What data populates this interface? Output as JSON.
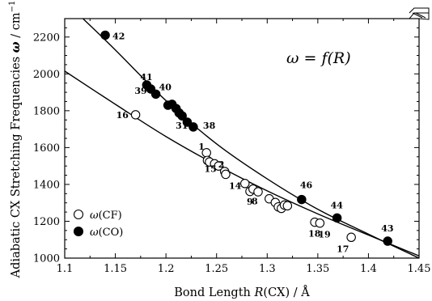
{
  "chart_data": {
    "type": "scatter",
    "xlabel_parts": [
      "Bond Length ",
      "R",
      "(CX) / Å"
    ],
    "ylabel_parts": [
      "Adiabatic CX Stretching Frequencies ",
      "ω",
      " / cm",
      "−1"
    ],
    "equation": "ω = f(R)",
    "xlim": [
      1.1,
      1.45
    ],
    "ylim": [
      1000,
      2300
    ],
    "x_ticks": [
      "1.1",
      "1.15",
      "1.2",
      "1.25",
      "1.3",
      "1.35",
      "1.4",
      "1.45"
    ],
    "y_ticks": [
      "1000",
      "1200",
      "1400",
      "1600",
      "1800",
      "2000",
      "2200"
    ],
    "legend": [
      {
        "symbol": "open-circle",
        "name_parts": [
          "ω",
          "(CF)"
        ]
      },
      {
        "symbol": "filled-circle",
        "name_parts": [
          "ω",
          "(CO)"
        ]
      }
    ],
    "series": [
      {
        "name": "ω(CF)",
        "marker": "open",
        "points": [
          {
            "x": 1.17,
            "y": 1778,
            "label": "16"
          },
          {
            "x": 1.24,
            "y": 1572,
            "label": "1"
          },
          {
            "x": 1.241,
            "y": 1530,
            "label": "15"
          },
          {
            "x": 1.243,
            "y": 1522
          },
          {
            "x": 1.248,
            "y": 1512
          },
          {
            "x": 1.252,
            "y": 1500
          },
          {
            "x": 1.258,
            "y": 1470,
            "label": "2"
          },
          {
            "x": 1.259,
            "y": 1455,
            "label": "14"
          },
          {
            "x": 1.278,
            "y": 1405
          },
          {
            "x": 1.283,
            "y": 1362,
            "label": "8"
          },
          {
            "x": 1.286,
            "y": 1375
          },
          {
            "x": 1.291,
            "y": 1360,
            "label": "9"
          },
          {
            "x": 1.302,
            "y": 1322
          },
          {
            "x": 1.308,
            "y": 1302
          },
          {
            "x": 1.311,
            "y": 1278
          },
          {
            "x": 1.314,
            "y": 1270
          },
          {
            "x": 1.317,
            "y": 1288
          },
          {
            "x": 1.32,
            "y": 1284
          },
          {
            "x": 1.347,
            "y": 1195,
            "label": "18"
          },
          {
            "x": 1.352,
            "y": 1190,
            "label": "19"
          },
          {
            "x": 1.383,
            "y": 1113,
            "label": "17"
          }
        ]
      },
      {
        "name": "ω(CO)",
        "marker": "filled",
        "points": [
          {
            "x": 1.14,
            "y": 2210,
            "label": "42"
          },
          {
            "x": 1.181,
            "y": 1940,
            "label": "41"
          },
          {
            "x": 1.185,
            "y": 1918,
            "label": "39"
          },
          {
            "x": 1.19,
            "y": 1890,
            "label": "40"
          },
          {
            "x": 1.202,
            "y": 1830
          },
          {
            "x": 1.206,
            "y": 1835
          },
          {
            "x": 1.21,
            "y": 1812
          },
          {
            "x": 1.213,
            "y": 1788
          },
          {
            "x": 1.216,
            "y": 1772,
            "label": "31"
          },
          {
            "x": 1.221,
            "y": 1738
          },
          {
            "x": 1.227,
            "y": 1712,
            "label": "38"
          },
          {
            "x": 1.334,
            "y": 1318,
            "label": "46"
          },
          {
            "x": 1.369,
            "y": 1218,
            "label": "44"
          },
          {
            "x": 1.419,
            "y": 1092,
            "label": "43"
          }
        ]
      }
    ],
    "fits": [
      {
        "name": "fit ω(CF)",
        "points": [
          [
            1.1,
            2015
          ],
          [
            1.15,
            1835
          ],
          [
            1.2,
            1660
          ],
          [
            1.25,
            1505
          ],
          [
            1.3,
            1365
          ],
          [
            1.35,
            1240
          ],
          [
            1.4,
            1125
          ],
          [
            1.45,
            1012
          ]
        ]
      },
      {
        "name": "fit ω(CO)",
        "points": [
          [
            1.118,
            2300
          ],
          [
            1.15,
            2130
          ],
          [
            1.2,
            1855
          ],
          [
            1.25,
            1620
          ],
          [
            1.3,
            1430
          ],
          [
            1.35,
            1265
          ],
          [
            1.4,
            1130
          ],
          [
            1.45,
            1000
          ]
        ]
      }
    ]
  }
}
